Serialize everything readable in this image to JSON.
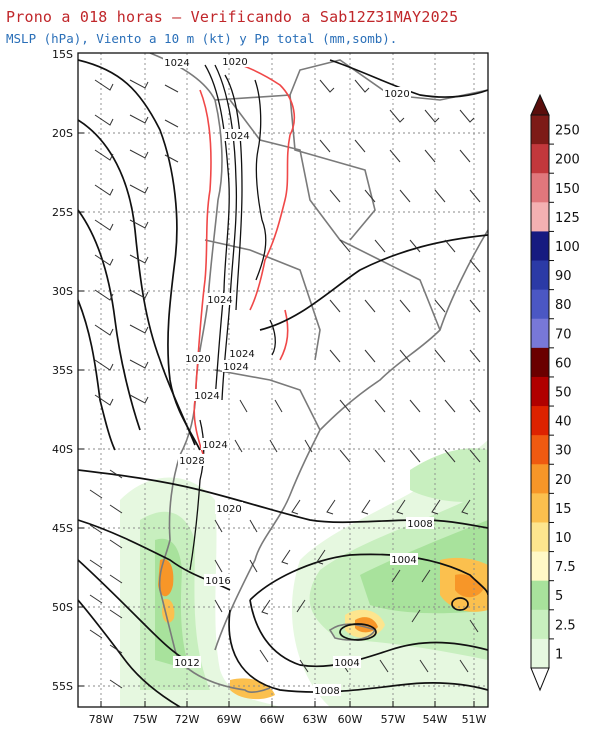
{
  "title": "Prono a 018 horas – Verificando a Sab12Z31MAY2025",
  "subtitle": "MSLP (hPa), Viento a 10 m (kt) y Pp total (mm,somb).",
  "lat_labels": [
    "15S",
    "20S",
    "25S",
    "30S",
    "35S",
    "40S",
    "45S",
    "50S",
    "55S"
  ],
  "lon_labels": [
    "78W",
    "75W",
    "72W",
    "69W",
    "66W",
    "63W",
    "60W",
    "57W",
    "54W",
    "51W"
  ],
  "isobar_labels": [
    {
      "text": "1024"
    },
    {
      "text": "1020"
    },
    {
      "text": "1020"
    },
    {
      "text": "1024"
    },
    {
      "text": "1024"
    },
    {
      "text": "1020"
    },
    {
      "text": "1024"
    },
    {
      "text": "1024"
    },
    {
      "text": "1024"
    },
    {
      "text": "1024"
    },
    {
      "text": "1028"
    },
    {
      "text": "1020"
    },
    {
      "text": "1016"
    },
    {
      "text": "1012"
    },
    {
      "text": "1008"
    },
    {
      "text": "1004"
    },
    {
      "text": "1004"
    },
    {
      "text": "1008"
    }
  ],
  "colorbar": {
    "levels": [
      "250",
      "200",
      "150",
      "125",
      "100",
      "90",
      "80",
      "70",
      "60",
      "50",
      "40",
      "30",
      "20",
      "15",
      "10",
      "7.5",
      "5",
      "2.5",
      "1"
    ],
    "colors": [
      "#7d1a17",
      "#c2383c",
      "#e0777c",
      "#f4b0b2",
      "#161a80",
      "#2b3aa6",
      "#4b57c4",
      "#7878d8",
      "#6a0000",
      "#b00000",
      "#dd2200",
      "#ef5a10",
      "#f79628",
      "#fbc04e",
      "#fde58e",
      "#fff8c6",
      "#a8e29c",
      "#c8efbf",
      "#e6f8e0"
    ]
  }
}
